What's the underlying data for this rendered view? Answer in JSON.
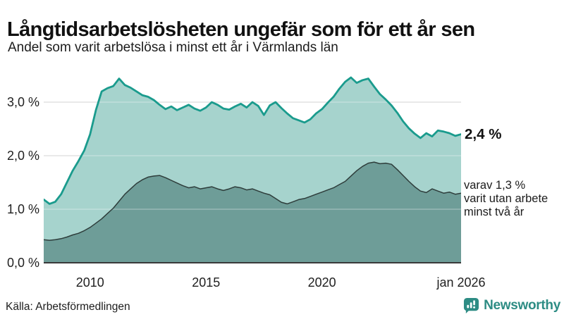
{
  "header": {
    "title": "Långtidsarbetslösheten ungefär som för ett år sen",
    "subtitle": "Andel som varit arbetslösa i minst ett år i Värmlands län"
  },
  "chart_data": {
    "type": "area",
    "title": "Långtidsarbetslösheten ungefär som för ett år sen",
    "subtitle": "Andel som varit arbetslösa i minst ett år i Värmlands län",
    "unit": "%",
    "x_start": 2008.0,
    "x_end": 2026.0,
    "x_step_years": 0.25,
    "ylim": [
      0,
      3.6
    ],
    "grid": true,
    "yticks": [
      {
        "value": 0,
        "label": "0,0 %"
      },
      {
        "value": 1,
        "label": "1,0 %"
      },
      {
        "value": 2,
        "label": "2,0 %"
      },
      {
        "value": 3,
        "label": "3,0 %"
      }
    ],
    "xticks": [
      {
        "year": 2010,
        "label": "2010"
      },
      {
        "year": 2015,
        "label": "2015"
      },
      {
        "year": 2020,
        "label": "2020"
      },
      {
        "year": 2026,
        "label": "jan 2026"
      }
    ],
    "series": [
      {
        "name": "Andel arbetslösa minst ett år",
        "color": "#1a9b8d",
        "fill": "#a6d3cd",
        "end_value": 2.4,
        "values": [
          1.18,
          1.1,
          1.14,
          1.28,
          1.5,
          1.72,
          1.9,
          2.1,
          2.4,
          2.85,
          3.2,
          3.26,
          3.3,
          3.44,
          3.32,
          3.27,
          3.2,
          3.13,
          3.1,
          3.04,
          2.95,
          2.87,
          2.92,
          2.85,
          2.9,
          2.95,
          2.88,
          2.84,
          2.9,
          3.0,
          2.95,
          2.88,
          2.86,
          2.92,
          2.97,
          2.9,
          3.0,
          2.93,
          2.76,
          2.94,
          3.0,
          2.89,
          2.79,
          2.7,
          2.66,
          2.62,
          2.68,
          2.79,
          2.87,
          2.99,
          3.1,
          3.25,
          3.38,
          3.46,
          3.36,
          3.41,
          3.44,
          3.29,
          3.15,
          3.05,
          2.94,
          2.8,
          2.64,
          2.51,
          2.41,
          2.33,
          2.42,
          2.36,
          2.47,
          2.45,
          2.42,
          2.37,
          2.4
        ]
      },
      {
        "name": "varav utan arbete minst två år",
        "color": "#2e3d3b",
        "fill": "#6e9d98",
        "end_value": 1.3,
        "values": [
          0.43,
          0.42,
          0.43,
          0.45,
          0.48,
          0.52,
          0.55,
          0.6,
          0.66,
          0.74,
          0.82,
          0.92,
          1.02,
          1.15,
          1.28,
          1.38,
          1.48,
          1.55,
          1.6,
          1.62,
          1.63,
          1.59,
          1.54,
          1.49,
          1.44,
          1.4,
          1.42,
          1.38,
          1.4,
          1.42,
          1.38,
          1.35,
          1.38,
          1.42,
          1.4,
          1.36,
          1.38,
          1.34,
          1.3,
          1.27,
          1.2,
          1.13,
          1.1,
          1.14,
          1.18,
          1.2,
          1.24,
          1.28,
          1.32,
          1.36,
          1.4,
          1.46,
          1.52,
          1.62,
          1.72,
          1.8,
          1.86,
          1.88,
          1.85,
          1.86,
          1.84,
          1.74,
          1.63,
          1.52,
          1.42,
          1.34,
          1.31,
          1.38,
          1.34,
          1.3,
          1.32,
          1.28,
          1.3
        ]
      }
    ],
    "annotations": {
      "end_value_label": "2,4 %",
      "sub_lines": [
        "varav 1,3 %",
        "varit utan arbete",
        "minst två år"
      ]
    },
    "colors": {
      "gridline": "#d8d8d8",
      "axis_line": "#3a3a3a"
    }
  },
  "footer": {
    "source": "Källa: Arbetsförmedlingen",
    "brand": "Newsworthy",
    "brand_color": "#2d8c84"
  }
}
